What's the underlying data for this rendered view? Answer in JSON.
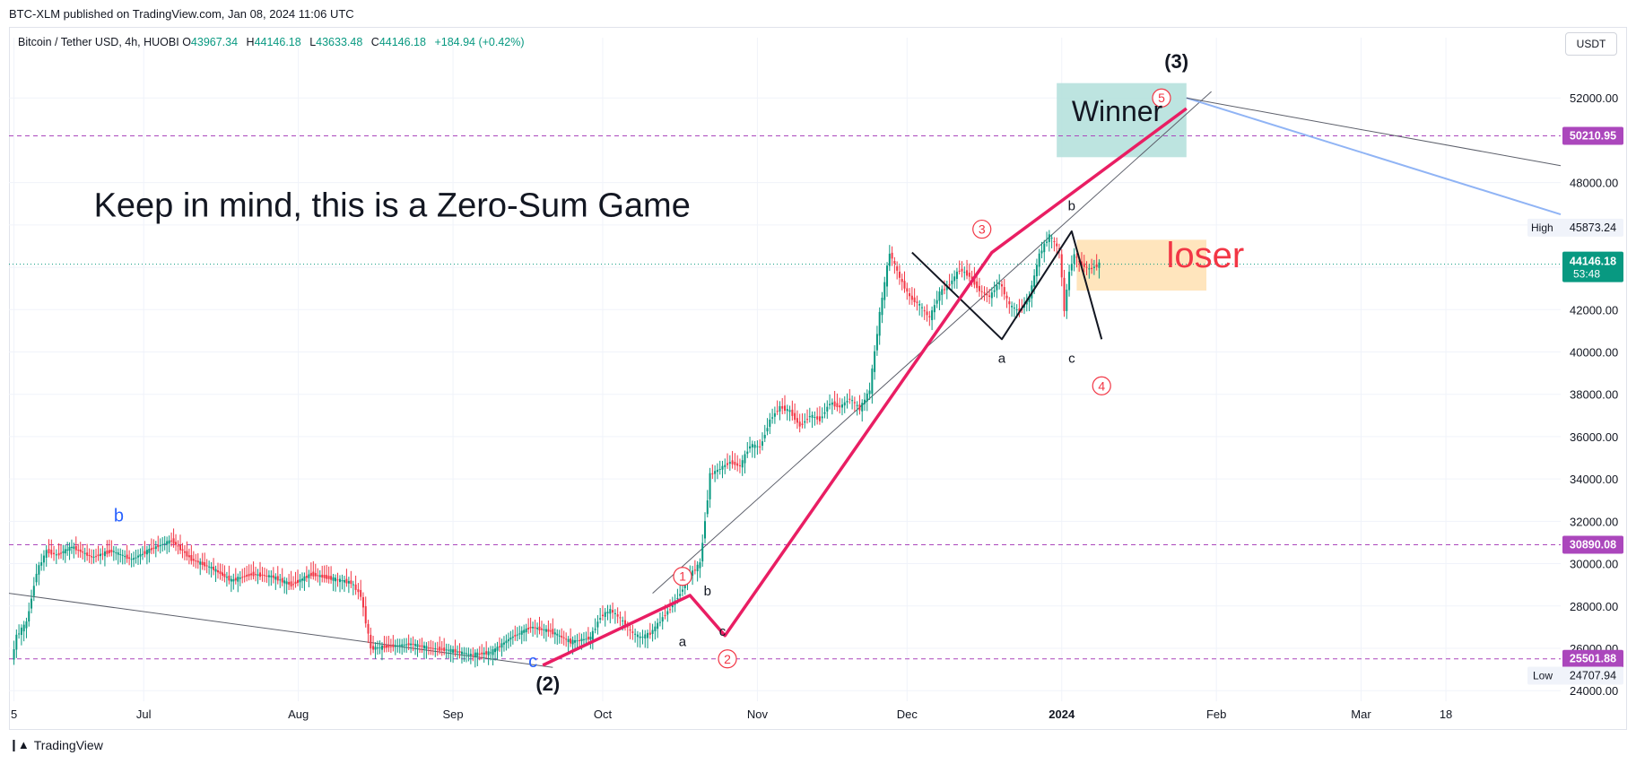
{
  "publisher_line": "BTC-XLM published on TradingView.com, Jan 08, 2024 11:06 UTC",
  "symbol_title": "Bitcoin / Tether USD, 4h, HUOBI",
  "ohlc": {
    "o_label": "O",
    "o": "43967.34",
    "h_label": "H",
    "h": "44146.18",
    "l_label": "L",
    "l": "43633.48",
    "c_label": "C",
    "c": "44146.18",
    "change": "+184.94 (+0.42%)"
  },
  "currency_button": "USDT",
  "brand": "TradingView",
  "colors": {
    "up": "#089981",
    "down": "#f23645",
    "wave_pink": "#e91e63",
    "hline": "#ab47bc",
    "winner_fill": "#b2dfdb",
    "loser_fill": "#ffe0b2",
    "label_blue": "#2962ff",
    "projection_blue": "#90b4f5",
    "current_price_bg": "#089981"
  },
  "chart_data": {
    "type": "line",
    "title": "Bitcoin / Tether USD, 4h, HUOBI",
    "ylim": [
      23500,
      54000
    ],
    "y_ticks": [
      24000,
      26000,
      28000,
      30000,
      32000,
      34000,
      36000,
      38000,
      40000,
      42000,
      44000,
      46000,
      48000,
      52000
    ],
    "y_tick_labels": [
      "24000.00",
      "26000.00",
      "28000.00",
      "30000.00",
      "32000.00",
      "34000.00",
      "36000.00",
      "38000.00",
      "40000.00",
      "42000.00",
      "44000.00",
      "46000.00",
      "48000.00",
      "52000.00"
    ],
    "x_ticks": [
      {
        "t": 0,
        "label": "5"
      },
      {
        "t": 26,
        "label": "Jul"
      },
      {
        "t": 57,
        "label": "Aug"
      },
      {
        "t": 88,
        "label": "Sep"
      },
      {
        "t": 118,
        "label": "Oct"
      },
      {
        "t": 149,
        "label": "Nov"
      },
      {
        "t": 179,
        "label": "Dec"
      },
      {
        "t": 210,
        "label": "2024"
      },
      {
        "t": 241,
        "label": "Feb"
      },
      {
        "t": 270,
        "label": "Mar"
      },
      {
        "t": 287,
        "label": "18"
      }
    ],
    "x_range": [
      -1,
      310
    ],
    "price_series": {
      "name": "BTCUSDT",
      "x": [
        0,
        1,
        3,
        5,
        7,
        9,
        12,
        16,
        20,
        24,
        28,
        32,
        36,
        40,
        44,
        48,
        52,
        56,
        60,
        64,
        68,
        70,
        72,
        76,
        80,
        84,
        88,
        92,
        96,
        100,
        104,
        108,
        112,
        116,
        118,
        120,
        122,
        124,
        126,
        128,
        130,
        132,
        134,
        136,
        138,
        140,
        142,
        144,
        146,
        148,
        150,
        152,
        154,
        156,
        158,
        160,
        162,
        164,
        166,
        168,
        170,
        172,
        174,
        176,
        178,
        180,
        182,
        184,
        186,
        188,
        190,
        192,
        194,
        196,
        198,
        200,
        202,
        204,
        206,
        208,
        210,
        211,
        212,
        213,
        214,
        216,
        218
      ],
      "y": [
        25400,
        26600,
        27200,
        29600,
        30600,
        30400,
        30800,
        30300,
        30600,
        30200,
        30700,
        31100,
        30200,
        29800,
        29200,
        29500,
        29400,
        29000,
        29500,
        29300,
        29100,
        28500,
        26000,
        26100,
        26200,
        26000,
        25900,
        25700,
        25800,
        26500,
        27000,
        26800,
        26300,
        26500,
        27500,
        27800,
        27400,
        26800,
        26500,
        26700,
        27300,
        27900,
        28600,
        29500,
        30000,
        34200,
        34500,
        34800,
        34600,
        35600,
        35500,
        36800,
        37400,
        37200,
        36500,
        37000,
        36800,
        37600,
        37400,
        37800,
        37300,
        38200,
        41800,
        44700,
        43500,
        42600,
        42200,
        41600,
        42800,
        43200,
        43900,
        43600,
        42900,
        42600,
        43300,
        42200,
        41900,
        42600,
        44600,
        45500,
        44800,
        42000,
        43800,
        44600,
        44200,
        43900,
        44146
      ]
    },
    "horizontal_levels": [
      50210.95,
      30890.08,
      25501.88
    ],
    "current_price": 44146.18,
    "current_price_countdown": "53:48",
    "high_value": 45873.24,
    "high_label": "High",
    "low_value": 24707.94,
    "low_label": "Low",
    "wave_primary": {
      "x": [
        106,
        135.5,
        142.5,
        196,
        235
      ],
      "y": [
        25200,
        28500,
        26600,
        44700,
        51500
      ]
    },
    "wave_correction": {
      "x": [
        180,
        198,
        212,
        218
      ],
      "y": [
        44700,
        40600,
        45700,
        40600
      ]
    },
    "projection_blue": {
      "x": [
        235,
        310
      ],
      "y": [
        52000,
        46500
      ]
    },
    "projection_gray": {
      "x": [
        235,
        310
      ],
      "y": [
        52000,
        48800
      ]
    },
    "trend_gray_lower": {
      "x": [
        -1,
        108
      ],
      "y": [
        28600,
        25100
      ]
    },
    "trend_gray_upper": {
      "x": [
        128,
        240
      ],
      "y": [
        28600,
        52300
      ]
    },
    "wave_labels": [
      {
        "text": "1",
        "x": 134,
        "y": 29400,
        "style": "circle"
      },
      {
        "text": "2",
        "x": 143,
        "y": 25500,
        "style": "circle"
      },
      {
        "text": "3",
        "x": 194,
        "y": 45800,
        "style": "circle"
      },
      {
        "text": "4",
        "x": 218,
        "y": 38400,
        "style": "circle"
      },
      {
        "text": "5",
        "x": 230,
        "y": 52000,
        "style": "circle"
      },
      {
        "text": "(2)",
        "x": 107,
        "y": 24000,
        "style": "major"
      },
      {
        "text": "(3)",
        "x": 233,
        "y": 53400,
        "style": "major"
      },
      {
        "text": "b",
        "x": 21,
        "y": 32000,
        "style": "blue"
      },
      {
        "text": "c",
        "x": 104,
        "y": 25100,
        "style": "blue"
      },
      {
        "text": "a",
        "x": 134,
        "y": 26100,
        "style": "minor"
      },
      {
        "text": "b",
        "x": 139,
        "y": 28500,
        "style": "minor"
      },
      {
        "text": "c",
        "x": 142,
        "y": 26600,
        "style": "minor"
      },
      {
        "text": "a",
        "x": 198,
        "y": 39500,
        "style": "minor"
      },
      {
        "text": "b",
        "x": 212,
        "y": 46700,
        "style": "minor"
      },
      {
        "text": "c",
        "x": 212,
        "y": 39500,
        "style": "minor"
      }
    ],
    "annotations": [
      {
        "text": "Keep in mind, this is a Zero-Sum Game",
        "x": 16,
        "y": 46400,
        "size": 38,
        "color": "#131722"
      },
      {
        "text": "Winner",
        "x": 212,
        "y": 50900,
        "size": 32,
        "color": "#131722"
      },
      {
        "text": "loser",
        "x": 231,
        "y": 44000,
        "size": 40,
        "color": "#f23645"
      }
    ],
    "zones": [
      {
        "name": "winner-zone",
        "x0": 209,
        "x1": 235,
        "y0": 49200,
        "y1": 52700,
        "color": "#b2dfdb"
      },
      {
        "name": "loser-zone",
        "x0": 213,
        "x1": 239,
        "y0": 42900,
        "y1": 45300,
        "color": "#ffe0b2"
      }
    ],
    "grid": true
  }
}
